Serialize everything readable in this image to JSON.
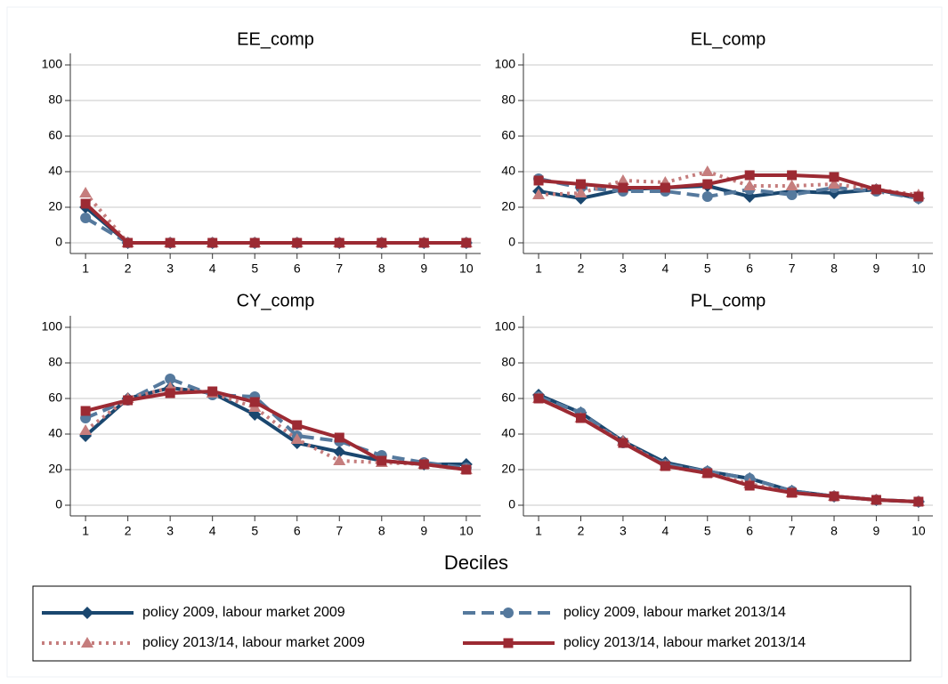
{
  "chart_data": [
    {
      "type": "line",
      "title": "EE_comp",
      "x": [
        1,
        2,
        3,
        4,
        5,
        6,
        7,
        8,
        9,
        10
      ],
      "xlim": [
        0.64,
        10.34
      ],
      "xticks": [
        1,
        2,
        3,
        4,
        5,
        6,
        7,
        8,
        9,
        10
      ],
      "ylim": [
        -6,
        106.5
      ],
      "yticks": [
        0,
        20,
        40,
        60,
        80,
        100
      ],
      "grid": true,
      "series": [
        {
          "name": "policy 2009, labour market 2009",
          "color": "#1a476f",
          "dash": "solid",
          "marker": "diamond",
          "values": [
            20,
            0,
            0,
            0,
            0,
            0,
            0,
            0,
            0,
            0
          ]
        },
        {
          "name": "policy 2009, labour market 2013/14",
          "color": "#55799d",
          "dash": "dashed",
          "marker": "circle",
          "values": [
            14,
            0,
            0,
            0,
            0,
            0,
            0,
            0,
            0,
            0
          ]
        },
        {
          "name": "policy 2013/14, labour market 2009",
          "color": "#c57d7d",
          "dash": "dotted",
          "marker": "triangle",
          "values": [
            28,
            0,
            0,
            0,
            0,
            0,
            0,
            0,
            0,
            0
          ]
        },
        {
          "name": "policy 2013/14, labour market 2013/14",
          "color": "#9c2a33",
          "dash": "solid",
          "marker": "square",
          "values": [
            22,
            0,
            0,
            0,
            0,
            0,
            0,
            0,
            0,
            0
          ]
        }
      ]
    },
    {
      "type": "line",
      "title": "EL_comp",
      "x": [
        1,
        2,
        3,
        4,
        5,
        6,
        7,
        8,
        9,
        10
      ],
      "xlim": [
        0.64,
        10.34
      ],
      "xticks": [
        1,
        2,
        3,
        4,
        5,
        6,
        7,
        8,
        9,
        10
      ],
      "ylim": [
        -6,
        106.5
      ],
      "yticks": [
        0,
        20,
        40,
        60,
        80,
        100
      ],
      "grid": true,
      "series": [
        {
          "name": "policy 2009, labour market 2009",
          "color": "#1a476f",
          "dash": "solid",
          "marker": "diamond",
          "values": [
            29,
            25,
            30,
            31,
            32,
            26,
            29,
            28,
            30,
            25
          ]
        },
        {
          "name": "policy 2009, labour market 2013/14",
          "color": "#55799d",
          "dash": "dashed",
          "marker": "circle",
          "values": [
            36,
            31,
            29,
            29,
            26,
            30,
            27,
            31,
            29,
            25
          ]
        },
        {
          "name": "policy 2013/14, labour market 2009",
          "color": "#c57d7d",
          "dash": "dotted",
          "marker": "triangle",
          "values": [
            27,
            28,
            35,
            34,
            40,
            32,
            32,
            33,
            30,
            27
          ]
        },
        {
          "name": "policy 2013/14, labour market 2013/14",
          "color": "#9c2a33",
          "dash": "solid",
          "marker": "square",
          "values": [
            35,
            33,
            31,
            31,
            33,
            38,
            38,
            37,
            30,
            26
          ]
        }
      ]
    },
    {
      "type": "line",
      "title": "CY_comp",
      "x": [
        1,
        2,
        3,
        4,
        5,
        6,
        7,
        8,
        9,
        10
      ],
      "xlim": [
        0.64,
        10.34
      ],
      "xticks": [
        1,
        2,
        3,
        4,
        5,
        6,
        7,
        8,
        9,
        10
      ],
      "ylim": [
        -6,
        106.5
      ],
      "yticks": [
        0,
        20,
        40,
        60,
        80,
        100
      ],
      "grid": true,
      "series": [
        {
          "name": "policy 2009, labour market 2009",
          "color": "#1a476f",
          "dash": "solid",
          "marker": "diamond",
          "values": [
            39,
            60,
            66,
            63,
            51,
            35,
            30,
            25,
            23,
            23
          ]
        },
        {
          "name": "policy 2009, labour market 2013/14",
          "color": "#55799d",
          "dash": "dashed",
          "marker": "circle",
          "values": [
            49,
            59,
            71,
            62,
            61,
            39,
            36,
            28,
            24,
            21
          ]
        },
        {
          "name": "policy 2013/14, labour market 2009",
          "color": "#c57d7d",
          "dash": "dotted",
          "marker": "triangle",
          "values": [
            42,
            60,
            66,
            63,
            55,
            37,
            25,
            24,
            23,
            20
          ]
        },
        {
          "name": "policy 2013/14, labour market 2013/14",
          "color": "#9c2a33",
          "dash": "solid",
          "marker": "square",
          "values": [
            53,
            59,
            63,
            64,
            58,
            45,
            38,
            25,
            23,
            20
          ]
        }
      ]
    },
    {
      "type": "line",
      "title": "PL_comp",
      "x": [
        1,
        2,
        3,
        4,
        5,
        6,
        7,
        8,
        9,
        10
      ],
      "xlim": [
        0.64,
        10.34
      ],
      "xticks": [
        1,
        2,
        3,
        4,
        5,
        6,
        7,
        8,
        9,
        10
      ],
      "ylim": [
        -6,
        106.5
      ],
      "yticks": [
        0,
        20,
        40,
        60,
        80,
        100
      ],
      "grid": true,
      "series": [
        {
          "name": "policy 2009, labour market 2009",
          "color": "#1a476f",
          "dash": "solid",
          "marker": "diamond",
          "values": [
            62,
            52,
            36,
            24,
            19,
            15,
            8,
            5,
            3,
            2
          ]
        },
        {
          "name": "policy 2009, labour market 2013/14",
          "color": "#55799d",
          "dash": "dashed",
          "marker": "circle",
          "values": [
            61,
            52,
            35,
            23,
            19,
            15,
            8,
            5,
            3,
            2
          ]
        },
        {
          "name": "policy 2013/14, labour market 2009",
          "color": "#c57d7d",
          "dash": "dotted",
          "marker": "triangle",
          "values": [
            60,
            49,
            36,
            22,
            18,
            12,
            7,
            5,
            3,
            2
          ]
        },
        {
          "name": "policy 2013/14, labour market 2013/14",
          "color": "#9c2a33",
          "dash": "solid",
          "marker": "square",
          "values": [
            60,
            49,
            35,
            22,
            18,
            11,
            7,
            5,
            3,
            2
          ]
        }
      ]
    }
  ],
  "xlabel": "Deciles"
}
